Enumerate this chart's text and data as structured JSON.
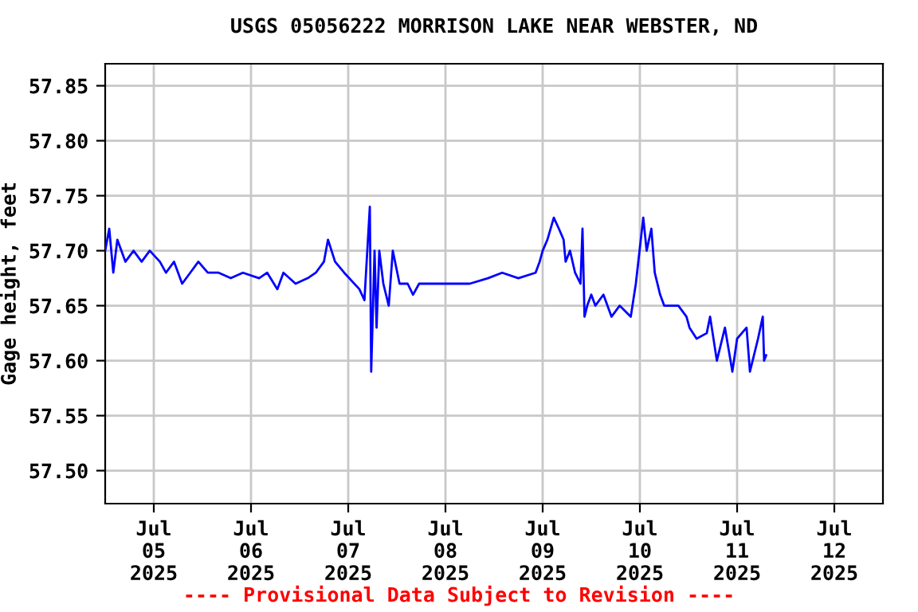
{
  "chart_data": {
    "type": "line",
    "title": "USGS 05056222 MORRISON LAKE NEAR WEBSTER, ND",
    "ylabel": "Gage height, feet",
    "annotations": [
      "---- Provisional Data Subject to Revision ----"
    ],
    "xlim": [
      "2025-07-04T12:00",
      "2025-07-12T12:00"
    ],
    "xticks": [
      {
        "value": "2025-07-05",
        "label": "Jul\n05\n2025"
      },
      {
        "value": "2025-07-06",
        "label": "Jul\n06\n2025"
      },
      {
        "value": "2025-07-07",
        "label": "Jul\n07\n2025"
      },
      {
        "value": "2025-07-08",
        "label": "Jul\n08\n2025"
      },
      {
        "value": "2025-07-09",
        "label": "Jul\n09\n2025"
      },
      {
        "value": "2025-07-10",
        "label": "Jul\n10\n2025"
      },
      {
        "value": "2025-07-11",
        "label": "Jul\n11\n2025"
      },
      {
        "value": "2025-07-12",
        "label": "Jul\n12\n2025"
      }
    ],
    "ylim": [
      57.47,
      57.87
    ],
    "yticks": [
      {
        "value": 57.5,
        "label": "57.50"
      },
      {
        "value": 57.55,
        "label": "57.55"
      },
      {
        "value": 57.6,
        "label": "57.60"
      },
      {
        "value": 57.65,
        "label": "57.65"
      },
      {
        "value": 57.7,
        "label": "57.70"
      },
      {
        "value": 57.75,
        "label": "57.75"
      },
      {
        "value": 57.8,
        "label": "57.80"
      },
      {
        "value": 57.85,
        "label": "57.85"
      }
    ],
    "grid": true,
    "line_style": "solid",
    "marker": "none",
    "series": [
      {
        "color": "#0000ff",
        "x": [
          "2025-07-04T12:00",
          "2025-07-04T13:00",
          "2025-07-04T14:00",
          "2025-07-04T15:00",
          "2025-07-04T17:00",
          "2025-07-04T19:00",
          "2025-07-04T21:00",
          "2025-07-04T23:00",
          "2025-07-05T01:30",
          "2025-07-05T03:00",
          "2025-07-05T05:00",
          "2025-07-05T07:00",
          "2025-07-05T09:00",
          "2025-07-05T11:00",
          "2025-07-05T13:20",
          "2025-07-05T16:00",
          "2025-07-05T19:00",
          "2025-07-05T22:00",
          "2025-07-06T02:00",
          "2025-07-06T04:00",
          "2025-07-06T06:30",
          "2025-07-06T08:00",
          "2025-07-06T11:00",
          "2025-07-06T14:00",
          "2025-07-06T16:00",
          "2025-07-06T18:00",
          "2025-07-06T19:00",
          "2025-07-06T20:45",
          "2025-07-06T23:00",
          "2025-07-07T02:45",
          "2025-07-07T04:00",
          "2025-07-07T05:20",
          "2025-07-07T05:40",
          "2025-07-07T06:30",
          "2025-07-07T07:00",
          "2025-07-07T07:40",
          "2025-07-07T08:40",
          "2025-07-07T10:00",
          "2025-07-07T11:00",
          "2025-07-07T12:40",
          "2025-07-07T14:40",
          "2025-07-07T16:00",
          "2025-07-07T17:30",
          "2025-07-08T06:00",
          "2025-07-08T10:30",
          "2025-07-08T14:00",
          "2025-07-08T18:00",
          "2025-07-08T22:15",
          "2025-07-08T23:15",
          "2025-07-09T00:00",
          "2025-07-09T01:10",
          "2025-07-09T02:45",
          "2025-07-09T04:00",
          "2025-07-09T05:10",
          "2025-07-09T05:40",
          "2025-07-09T06:45",
          "2025-07-09T08:00",
          "2025-07-09T09:20",
          "2025-07-09T09:50",
          "2025-07-09T10:20",
          "2025-07-09T11:00",
          "2025-07-09T12:00",
          "2025-07-09T13:00",
          "2025-07-09T15:00",
          "2025-07-09T17:00",
          "2025-07-09T19:00",
          "2025-07-09T21:45",
          "2025-07-09T23:00",
          "2025-07-10T00:50",
          "2025-07-10T01:40",
          "2025-07-10T02:50",
          "2025-07-10T03:40",
          "2025-07-10T05:00",
          "2025-07-10T06:00",
          "2025-07-10T09:30",
          "2025-07-10T11:30",
          "2025-07-10T12:15",
          "2025-07-10T14:00",
          "2025-07-10T16:30",
          "2025-07-10T17:20",
          "2025-07-10T19:00",
          "2025-07-10T21:00",
          "2025-07-10T22:50",
          "2025-07-11T00:00",
          "2025-07-11T02:20",
          "2025-07-11T03:10",
          "2025-07-11T05:10",
          "2025-07-11T06:20",
          "2025-07-11T06:40",
          "2025-07-11T07:10"
        ],
        "values": [
          57.7,
          57.72,
          57.68,
          57.71,
          57.69,
          57.7,
          57.69,
          57.7,
          57.69,
          57.68,
          57.69,
          57.67,
          57.68,
          57.69,
          57.68,
          57.68,
          57.675,
          57.68,
          57.675,
          57.68,
          57.665,
          57.68,
          57.67,
          57.675,
          57.68,
          57.69,
          57.71,
          57.69,
          57.68,
          57.665,
          57.655,
          57.74,
          57.59,
          57.7,
          57.63,
          57.7,
          57.67,
          57.65,
          57.7,
          57.67,
          57.67,
          57.66,
          57.67,
          57.67,
          57.675,
          57.68,
          57.675,
          57.68,
          57.69,
          57.7,
          57.71,
          57.73,
          57.72,
          57.71,
          57.69,
          57.7,
          57.68,
          57.67,
          57.72,
          57.64,
          57.65,
          57.66,
          57.65,
          57.66,
          57.64,
          57.65,
          57.64,
          57.67,
          57.73,
          57.7,
          57.72,
          57.68,
          57.66,
          57.65,
          57.65,
          57.64,
          57.63,
          57.62,
          57.625,
          57.64,
          57.6,
          57.63,
          57.59,
          57.62,
          57.63,
          57.59,
          57.62,
          57.64,
          57.6,
          57.605
        ]
      }
    ]
  }
}
